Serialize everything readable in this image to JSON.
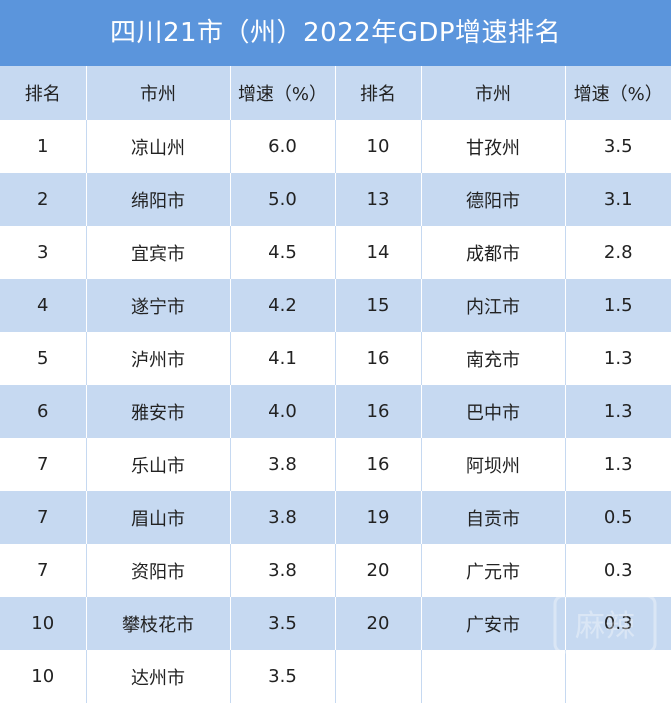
{
  "title": "四川21市（州）2022年GDP增速排名",
  "watermark_text": "麻辣",
  "colors": {
    "title_bg": "#5b95dc",
    "header_bg": "#c6d9f1",
    "stripe_bg": "#c6d9f1",
    "title_text": "#ffffff"
  },
  "headers": [
    "排名",
    "市州",
    "增速（%）",
    "排名",
    "市州",
    "增速（%）"
  ],
  "rows": [
    [
      "1",
      "凉山州",
      "6.0",
      "10",
      "甘孜州",
      "3.5"
    ],
    [
      "2",
      "绵阳市",
      "5.0",
      "13",
      "德阳市",
      "3.1"
    ],
    [
      "3",
      "宜宾市",
      "4.5",
      "14",
      "成都市",
      "2.8"
    ],
    [
      "4",
      "遂宁市",
      "4.2",
      "15",
      "内江市",
      "1.5"
    ],
    [
      "5",
      "泸州市",
      "4.1",
      "16",
      "南充市",
      "1.3"
    ],
    [
      "6",
      "雅安市",
      "4.0",
      "16",
      "巴中市",
      "1.3"
    ],
    [
      "7",
      "乐山市",
      "3.8",
      "16",
      "阿坝州",
      "1.3"
    ],
    [
      "7",
      "眉山市",
      "3.8",
      "19",
      "自贡市",
      "0.5"
    ],
    [
      "7",
      "资阳市",
      "3.8",
      "20",
      "广元市",
      "0.3"
    ],
    [
      "10",
      "攀枝花市",
      "3.5",
      "20",
      "广安市",
      "0.3"
    ],
    [
      "10",
      "达州市",
      "3.5",
      "",
      "",
      ""
    ]
  ],
  "chart_data": {
    "type": "table",
    "title": "四川21市（州）2022年GDP增速排名",
    "columns": [
      "排名",
      "市州",
      "增速（%）"
    ],
    "records": [
      {
        "rank": 1,
        "city": "凉山州",
        "growth": 6.0
      },
      {
        "rank": 2,
        "city": "绵阳市",
        "growth": 5.0
      },
      {
        "rank": 3,
        "city": "宜宾市",
        "growth": 4.5
      },
      {
        "rank": 4,
        "city": "遂宁市",
        "growth": 4.2
      },
      {
        "rank": 5,
        "city": "泸州市",
        "growth": 4.1
      },
      {
        "rank": 6,
        "city": "雅安市",
        "growth": 4.0
      },
      {
        "rank": 7,
        "city": "乐山市",
        "growth": 3.8
      },
      {
        "rank": 7,
        "city": "眉山市",
        "growth": 3.8
      },
      {
        "rank": 7,
        "city": "资阳市",
        "growth": 3.8
      },
      {
        "rank": 10,
        "city": "攀枝花市",
        "growth": 3.5
      },
      {
        "rank": 10,
        "city": "达州市",
        "growth": 3.5
      },
      {
        "rank": 10,
        "city": "甘孜州",
        "growth": 3.5
      },
      {
        "rank": 13,
        "city": "德阳市",
        "growth": 3.1
      },
      {
        "rank": 14,
        "city": "成都市",
        "growth": 2.8
      },
      {
        "rank": 15,
        "city": "内江市",
        "growth": 1.5
      },
      {
        "rank": 16,
        "city": "南充市",
        "growth": 1.3
      },
      {
        "rank": 16,
        "city": "巴中市",
        "growth": 1.3
      },
      {
        "rank": 16,
        "city": "阿坝州",
        "growth": 1.3
      },
      {
        "rank": 19,
        "city": "自贡市",
        "growth": 0.5
      },
      {
        "rank": 20,
        "city": "广元市",
        "growth": 0.3
      },
      {
        "rank": 20,
        "city": "广安市",
        "growth": 0.3
      }
    ]
  }
}
